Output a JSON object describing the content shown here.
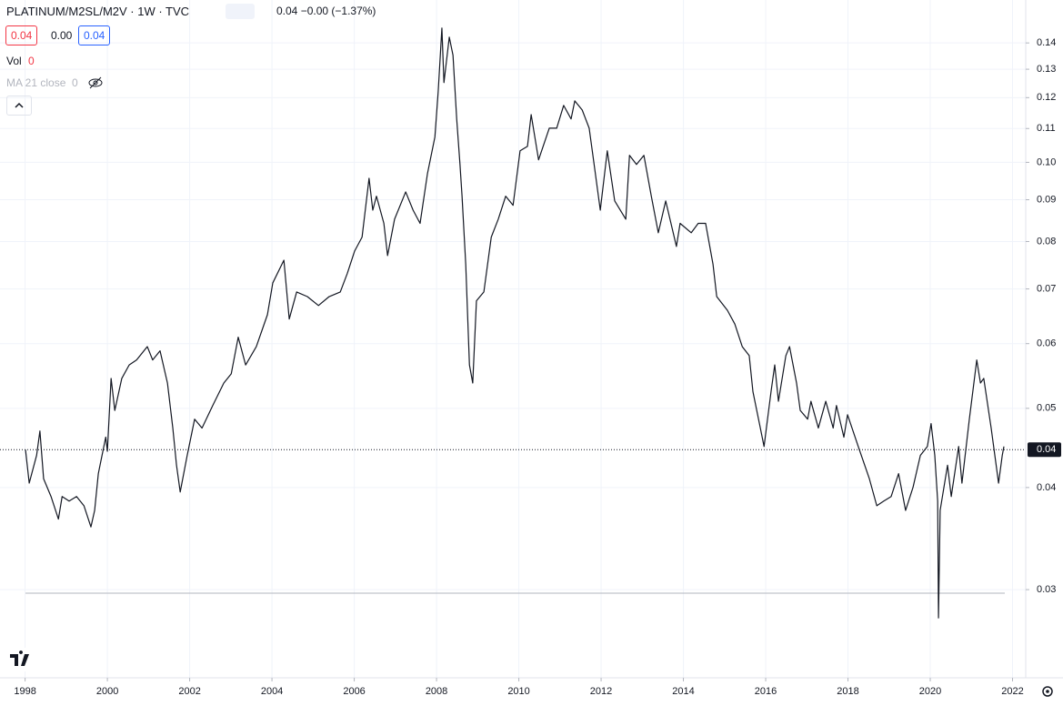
{
  "header": {
    "symbol": "PLATINUM/M2SL/M2V · 1W · TVC",
    "quote": "0.04 −0.00 (−1.37%)",
    "open_box": "0.04",
    "change_box": "0.00",
    "close_box": "0.04",
    "vol_label": "Vol",
    "vol_value": "0",
    "ma_label": "MA 21 close",
    "ma_value": "0"
  },
  "chart_data": {
    "type": "line",
    "log_y": true,
    "grid": true,
    "color": "#131722",
    "xlim": [
      1997.39,
      2022.32
    ],
    "ylim": [
      0.0234,
      0.158
    ],
    "xticks": [
      1998,
      2000,
      2002,
      2004,
      2006,
      2008,
      2010,
      2012,
      2014,
      2016,
      2018,
      2020,
      2022
    ],
    "yticks": [
      0.03,
      0.04,
      0.05,
      0.06,
      0.07,
      0.08,
      0.09,
      {
        "value": 0.1,
        "label": "0.10"
      },
      0.11,
      0.12,
      0.13,
      0.14
    ],
    "last_price": {
      "value": 0.0445,
      "label": "0.04"
    },
    "x": [
      1998.01,
      1998.1,
      1998.28,
      1998.36,
      1998.45,
      1998.63,
      1998.81,
      1998.9,
      1999.07,
      1999.25,
      1999.43,
      1999.6,
      1999.69,
      1999.78,
      1999.87,
      1999.96,
      2000.0,
      2000.09,
      2000.18,
      2000.35,
      2000.53,
      2000.71,
      2000.97,
      2001.1,
      2001.28,
      2001.46,
      2001.59,
      2001.68,
      2001.77,
      2001.94,
      2002.12,
      2002.3,
      2002.56,
      2002.83,
      2003.01,
      2003.18,
      2003.36,
      2003.62,
      2003.89,
      2004.02,
      2004.29,
      2004.42,
      2004.6,
      2004.86,
      2005.13,
      2005.39,
      2005.66,
      2005.83,
      2006.01,
      2006.19,
      2006.36,
      2006.45,
      2006.54,
      2006.72,
      2006.81,
      2006.98,
      2007.25,
      2007.43,
      2007.6,
      2007.78,
      2007.96,
      2008.04,
      2008.13,
      2008.18,
      2008.31,
      2008.4,
      2008.49,
      2008.57,
      2008.62,
      2008.71,
      2008.8,
      2008.88,
      2008.97,
      2009.15,
      2009.33,
      2009.5,
      2009.68,
      2009.86,
      2010.03,
      2010.21,
      2010.3,
      2010.48,
      2010.74,
      2010.92,
      2011.09,
      2011.27,
      2011.36,
      2011.54,
      2011.71,
      2011.8,
      2011.98,
      2012.15,
      2012.33,
      2012.6,
      2012.69,
      2012.86,
      2013.04,
      2013.22,
      2013.39,
      2013.57,
      2013.83,
      2013.92,
      2014.19,
      2014.36,
      2014.54,
      2014.72,
      2014.81,
      2015.07,
      2015.25,
      2015.43,
      2015.6,
      2015.69,
      2015.87,
      2015.96,
      2016.13,
      2016.22,
      2016.31,
      2016.49,
      2016.58,
      2016.75,
      2016.84,
      2017.02,
      2017.1,
      2017.28,
      2017.46,
      2017.64,
      2017.72,
      2017.9,
      2017.99,
      2018.25,
      2018.52,
      2018.7,
      2018.87,
      2019.05,
      2019.23,
      2019.4,
      2019.58,
      2019.76,
      2019.93,
      2020.02,
      2020.11,
      2020.18,
      2020.2,
      2020.24,
      2020.42,
      2020.51,
      2020.69,
      2020.77,
      2020.95,
      2021.13,
      2021.22,
      2021.3,
      2021.48,
      2021.66,
      2021.75,
      2021.79
    ],
    "values": [
      0.0445,
      0.0405,
      0.0438,
      0.0469,
      0.041,
      0.039,
      0.0366,
      0.039,
      0.0385,
      0.039,
      0.038,
      0.0358,
      0.0375,
      0.0416,
      0.0438,
      0.0461,
      0.0443,
      0.0544,
      0.0497,
      0.0544,
      0.0565,
      0.0573,
      0.0595,
      0.0573,
      0.0588,
      0.0537,
      0.0473,
      0.0426,
      0.0395,
      0.0438,
      0.0485,
      0.0473,
      0.0504,
      0.0537,
      0.0551,
      0.0611,
      0.0565,
      0.0595,
      0.0651,
      0.0712,
      0.0759,
      0.0643,
      0.0694,
      0.0685,
      0.0668,
      0.0685,
      0.0694,
      0.0731,
      0.0779,
      0.081,
      0.0956,
      0.0874,
      0.0909,
      0.0842,
      0.0769,
      0.0852,
      0.092,
      0.0874,
      0.0842,
      0.0969,
      0.1074,
      0.122,
      0.146,
      0.1252,
      0.1423,
      0.1352,
      0.113,
      0.0994,
      0.0909,
      0.075,
      0.0565,
      0.0537,
      0.0677,
      0.0694,
      0.081,
      0.0852,
      0.0909,
      0.0886,
      0.1033,
      0.1046,
      0.1144,
      0.1007,
      0.1101,
      0.1101,
      0.1174,
      0.113,
      0.1189,
      0.1159,
      0.1101,
      0.102,
      0.0874,
      0.1033,
      0.0897,
      0.0852,
      0.102,
      0.0994,
      0.102,
      0.0909,
      0.082,
      0.0897,
      0.0789,
      0.0842,
      0.082,
      0.0842,
      0.0842,
      0.075,
      0.0685,
      0.0659,
      0.0634,
      0.0595,
      0.058,
      0.0524,
      0.0473,
      0.0449,
      0.0524,
      0.0565,
      0.051,
      0.058,
      0.0595,
      0.0537,
      0.0497,
      0.0485,
      0.051,
      0.0473,
      0.051,
      0.0473,
      0.0504,
      0.0461,
      0.0491,
      0.0449,
      0.041,
      0.038,
      0.0385,
      0.039,
      0.0416,
      0.0375,
      0.04,
      0.0438,
      0.0449,
      0.0479,
      0.0438,
      0.0385,
      0.0277,
      0.0375,
      0.0426,
      0.039,
      0.0449,
      0.0405,
      0.0485,
      0.0573,
      0.0537,
      0.0544,
      0.0473,
      0.0405,
      0.0438,
      0.0449
    ]
  }
}
